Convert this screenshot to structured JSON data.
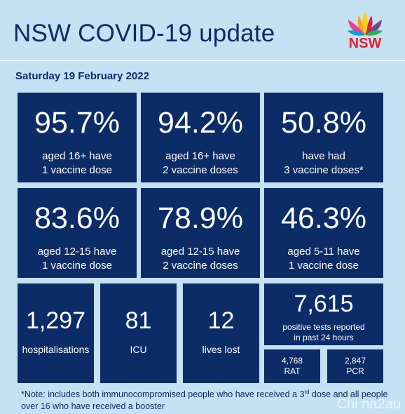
{
  "header": {
    "title": "NSW COVID-19 update",
    "logo_text": "NSW"
  },
  "date": "Saturday 19 February 2022",
  "vaccine_stats": [
    {
      "value": "95.7%",
      "line1": "aged 16+ have",
      "line2": "1 vaccine dose"
    },
    {
      "value": "94.2%",
      "line1": "aged 16+ have",
      "line2": "2 vaccine doses"
    },
    {
      "value": "50.8%",
      "line1": "have had",
      "line2": "3 vaccine doses*"
    },
    {
      "value": "83.6%",
      "line1": "aged 12-15 have",
      "line2": "1 vaccine dose"
    },
    {
      "value": "78.9%",
      "line1": "aged 12-15 have",
      "line2": "2 vaccine doses"
    },
    {
      "value": "46.3%",
      "line1": "aged 5-11 have",
      "line2": "1 vaccine dose"
    }
  ],
  "hospital_stats": [
    {
      "value": "1,297",
      "label": "hospitalisations"
    },
    {
      "value": "81",
      "label": "ICU"
    },
    {
      "value": "12",
      "label": "lives lost"
    }
  ],
  "tests": {
    "value": "7,615",
    "line1": "positive tests reported",
    "line2": "in past 24 hours",
    "rat_value": "4,768",
    "rat_label": "RAT",
    "pcr_value": "2,847",
    "pcr_label": "PCR"
  },
  "note": {
    "part1": "*Note: includes both immunocompromised people who have received a 3",
    "sup": "rd",
    "part2": " dose and all people over 16 who have received a booster"
  },
  "watermark": "Chi na2au",
  "colors": {
    "background": "#c5e2f4",
    "box": "#0b2c66",
    "title": "#0b2c66",
    "logo_red": "#e4202e"
  }
}
